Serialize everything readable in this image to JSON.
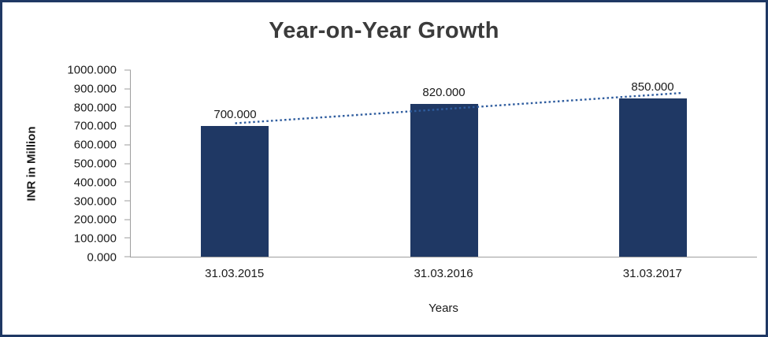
{
  "frame": {
    "border_color": "#1f3864",
    "background_color": "#ffffff"
  },
  "chart_data": {
    "type": "bar",
    "title": "Year-on-Year Growth",
    "xlabel": "Years",
    "ylabel": "INR in Million",
    "categories": [
      "31.03.2015",
      "31.03.2016",
      "31.03.2017"
    ],
    "values": [
      700,
      820,
      850
    ],
    "data_labels": [
      "700.000",
      "820.000",
      "850.000"
    ],
    "yticks": [
      "0.000",
      "100.000",
      "200.000",
      "300.000",
      "400.000",
      "500.000",
      "600.000",
      "700.000",
      "800.000",
      "900.000",
      "1000.000"
    ],
    "ylim": [
      0,
      1000
    ],
    "grid": false,
    "legend": "none",
    "bar_color": "#1f3864",
    "axis_color": "#9e9e9e",
    "trendline": {
      "type": "linear",
      "style": "dotted",
      "color": "#2e5c9e",
      "start_value": 715,
      "end_value": 865
    }
  }
}
